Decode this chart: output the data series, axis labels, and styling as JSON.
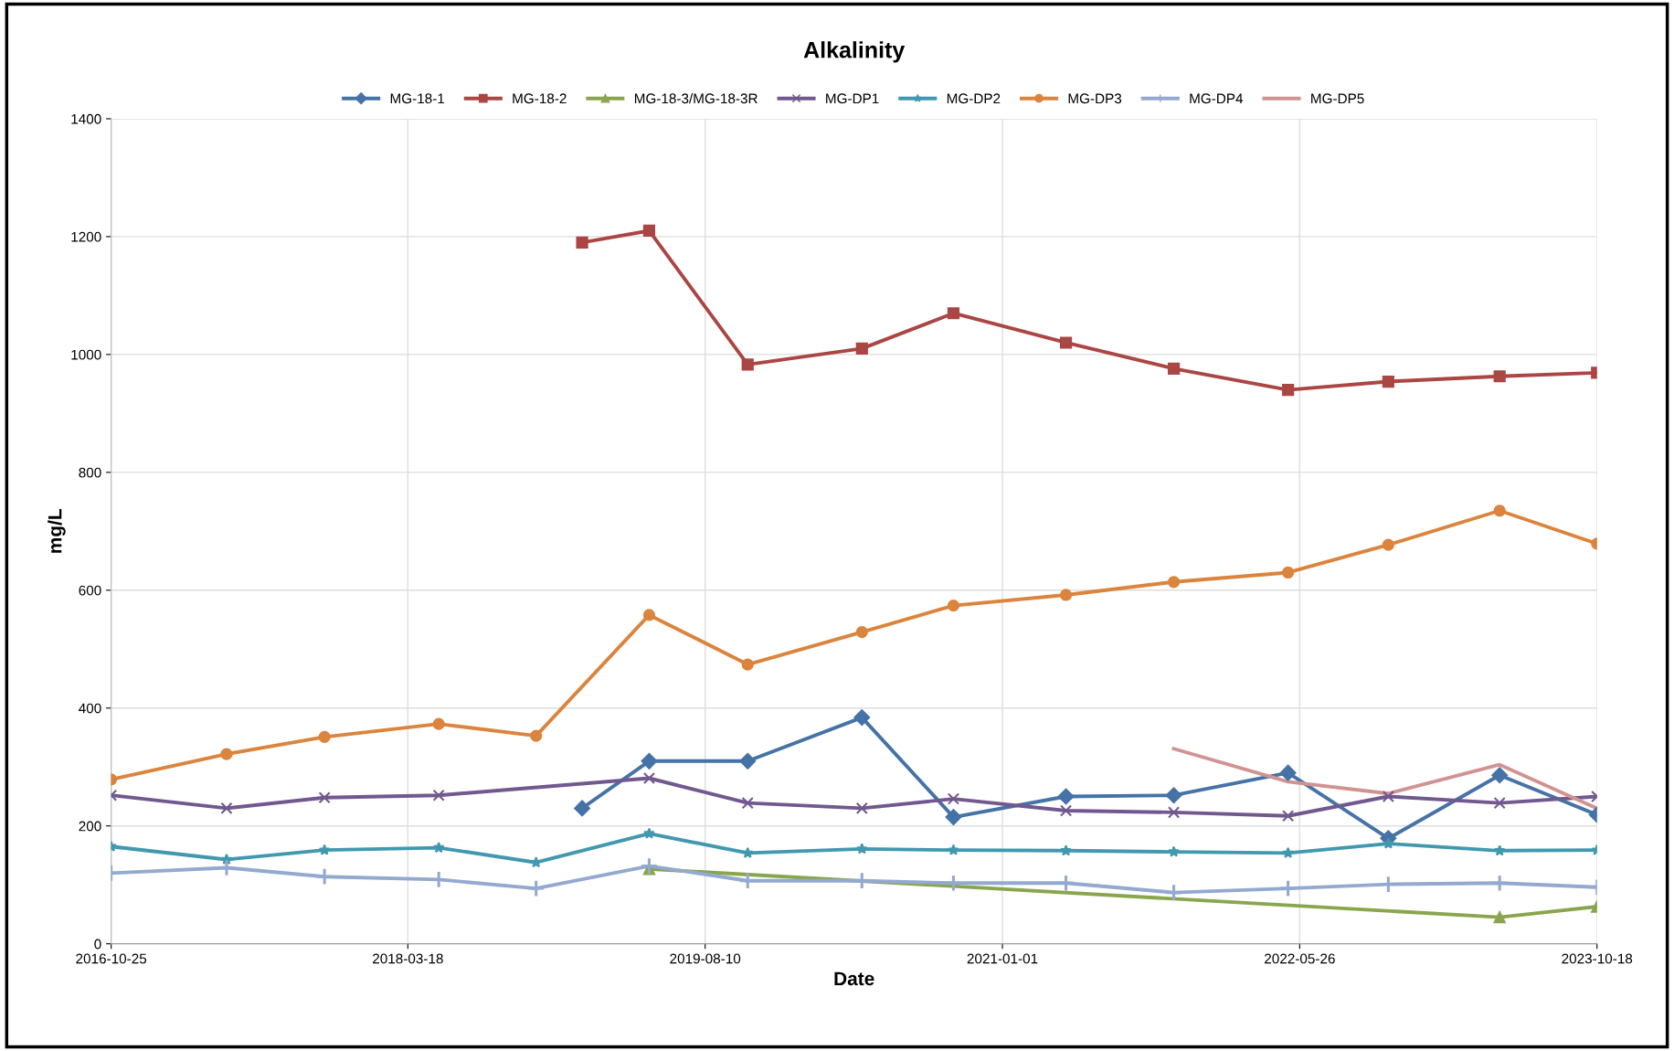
{
  "chart_data": {
    "type": "line",
    "title": "Alkalinity",
    "xlabel": "Date",
    "ylabel": "mg/L",
    "x": [
      "2016-10-25",
      "2017-05-11",
      "2017-10-26",
      "2018-05-10",
      "2018-10-24",
      "2019-01-11",
      "2019-05-06",
      "2019-10-22",
      "2020-05-05",
      "2020-10-09",
      "2021-04-20",
      "2021-10-22",
      "2022-05-06",
      "2022-10-25",
      "2023-05-04",
      "2023-10-18"
    ],
    "series": [
      {
        "name": "MG-18-1",
        "color": "#4572a7",
        "marker": "diamond",
        "values": [
          null,
          null,
          null,
          null,
          null,
          230,
          310,
          310,
          384,
          215,
          250,
          252,
          290,
          179,
          286,
          219
        ]
      },
      {
        "name": "MG-18-2",
        "color": "#aa4643",
        "marker": "square",
        "values": [
          null,
          null,
          null,
          null,
          null,
          1190,
          1210,
          983,
          1010,
          1070,
          1020,
          976,
          940,
          954,
          963,
          969
        ]
      },
      {
        "name": "MG-18-3/MG-18-3R",
        "color": "#89a54e",
        "marker": "triangle",
        "values": [
          null,
          null,
          null,
          null,
          null,
          null,
          127,
          null,
          null,
          null,
          null,
          null,
          null,
          null,
          45,
          63
        ]
      },
      {
        "name": "MG-DP1",
        "color": "#71588f",
        "marker": "cross",
        "values": [
          252,
          230,
          248,
          252,
          null,
          null,
          281,
          239,
          230,
          246,
          226,
          223,
          217,
          250,
          239,
          250
        ]
      },
      {
        "name": "MG-DP2",
        "color": "#4198af",
        "marker": "star",
        "values": [
          165,
          143,
          159,
          163,
          138,
          null,
          187,
          154,
          161,
          159,
          158,
          156,
          154,
          170,
          158,
          159
        ]
      },
      {
        "name": "MG-DP3",
        "color": "#db843d",
        "marker": "circle",
        "values": [
          279,
          322,
          351,
          373,
          353,
          null,
          558,
          474,
          529,
          574,
          592,
          614,
          630,
          677,
          735,
          679
        ]
      },
      {
        "name": "MG-DP4",
        "color": "#93a9cf",
        "marker": "plus",
        "values": [
          120,
          129,
          114,
          109,
          94,
          null,
          132,
          107,
          107,
          103,
          103,
          87,
          94,
          101,
          103,
          96
        ]
      },
      {
        "name": "MG-DP5",
        "color": "#d19392",
        "marker": "none",
        "values": [
          null,
          null,
          null,
          null,
          null,
          null,
          null,
          null,
          null,
          null,
          null,
          331,
          275,
          255,
          304,
          230
        ]
      }
    ],
    "xlim": [
      "2016-10-25",
      "2023-10-18"
    ],
    "xticks": [
      {
        "value": "2016-10-25",
        "label": "2016-10-25"
      },
      {
        "value": "2018-03-18",
        "label": "2018-03-18"
      },
      {
        "value": "2019-08-10",
        "label": "2019-08-10"
      },
      {
        "value": "2021-01-01",
        "label": "2021-01-01"
      },
      {
        "value": "2022-05-26",
        "label": "2022-05-26"
      },
      {
        "value": "2023-10-18",
        "label": "2023-10-18"
      }
    ],
    "ylim": [
      0,
      1400
    ],
    "yticks": [
      0,
      200,
      400,
      600,
      800,
      1000,
      1200,
      1400
    ],
    "grid": true,
    "legend": "top",
    "line_style": "solid"
  }
}
